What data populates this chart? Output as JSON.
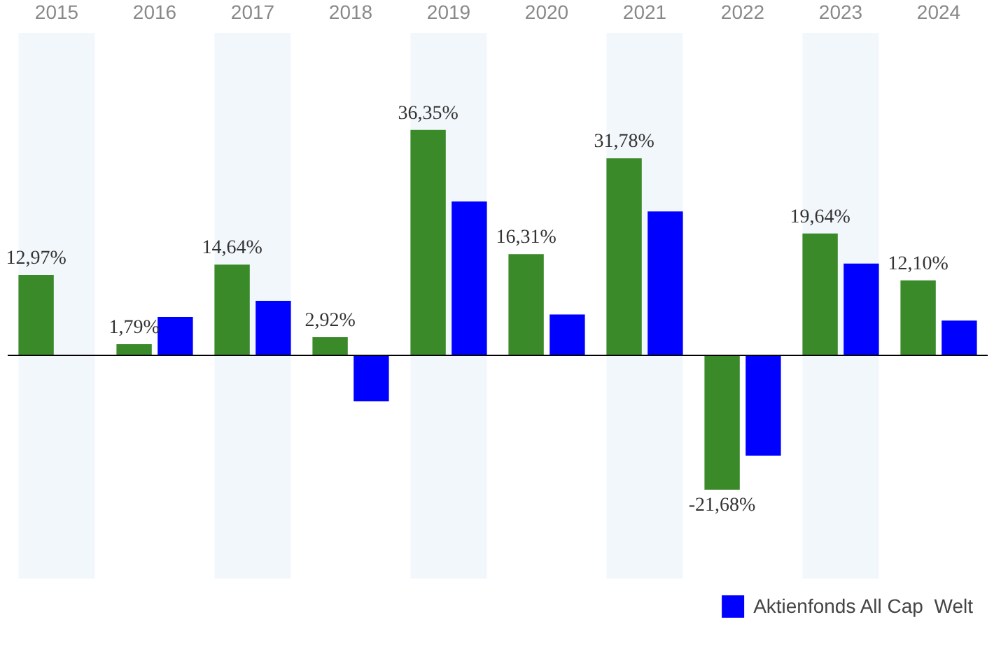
{
  "chart_data": {
    "type": "bar",
    "categories": [
      "2015",
      "2016",
      "2017",
      "2018",
      "2019",
      "2020",
      "2021",
      "2022",
      "2023",
      "2024"
    ],
    "series": [
      {
        "color": "#3a8a2a",
        "values": [
          12.97,
          1.79,
          14.64,
          2.92,
          36.35,
          16.31,
          31.78,
          -21.68,
          19.64,
          12.1
        ],
        "value_labels": [
          "12,97%",
          "1,79%",
          "14,64%",
          "2,92%",
          "36,35%",
          "16,31%",
          "31,78%",
          "-21,68%",
          "19,64%",
          "12,10%"
        ]
      },
      {
        "name": "Aktienfonds All Cap  Welt",
        "color": "#0000ff",
        "values": [
          null,
          6.2,
          8.8,
          -7.4,
          24.8,
          6.6,
          23.2,
          -16.2,
          14.8,
          5.6
        ]
      }
    ],
    "ylim": [
      -36,
      52
    ],
    "ref_lines": [
      {
        "axis": "y",
        "value": 0,
        "color": "#000000"
      }
    ],
    "bands": [
      {
        "axis": "x",
        "from": "2015",
        "to": "2015",
        "color": "#f2f7fc"
      },
      {
        "axis": "x",
        "from": "2017",
        "to": "2017",
        "color": "#f2f7fc"
      },
      {
        "axis": "x",
        "from": "2019",
        "to": "2019",
        "color": "#f2f7fc"
      },
      {
        "axis": "x",
        "from": "2021",
        "to": "2021",
        "color": "#f2f7fc"
      },
      {
        "axis": "x",
        "from": "2023",
        "to": "2023",
        "color": "#f2f7fc"
      }
    ],
    "legend": "bottom"
  }
}
